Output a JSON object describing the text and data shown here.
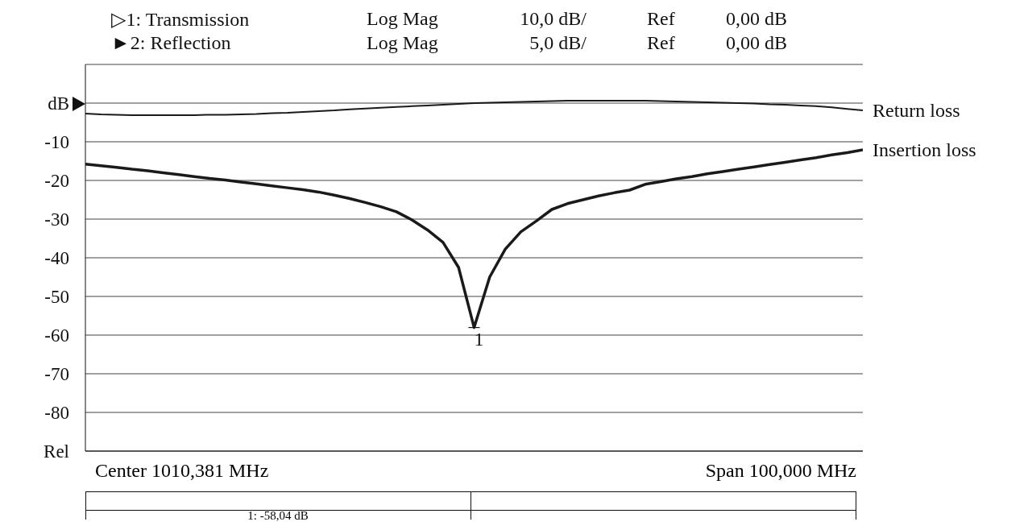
{
  "chart_data": {
    "type": "line",
    "annotations": [
      "▷1: Transmission",
      "Log Mag",
      "10,0 dB/",
      "Ref",
      "0,00 dB",
      "►2: Reflection",
      "Log Mag",
      "5,0 dB/",
      "Ref",
      "0,00 dB",
      "Center 1010,381 MHz",
      "Span 100,000 MHz",
      "1: -58,04 dB",
      {
        "text": "1",
        "y": -58.04
      }
    ],
    "categories": [
      null,
      null,
      null,
      null,
      null,
      null,
      null,
      null,
      null,
      null,
      null,
      null,
      null,
      null,
      null,
      null,
      null,
      null,
      null,
      null,
      null,
      null,
      null,
      null,
      null,
      null,
      null,
      null,
      null,
      null,
      null,
      null,
      null,
      null,
      null,
      null,
      null,
      null,
      null,
      null,
      null,
      null,
      null,
      null,
      null,
      null,
      null,
      null,
      null,
      null,
      null
    ],
    "series": [
      {
        "name": "Return loss",
        "color": "#1a1a1a",
        "values": [
          -2.7,
          -2.9,
          -3.0,
          -3.1,
          -3.1,
          -3.1,
          -3.1,
          -3.1,
          -3.0,
          -3.0,
          -2.9,
          -2.8,
          -2.6,
          -2.5,
          -2.3,
          -2.1,
          -1.9,
          -1.6,
          -1.4,
          -1.2,
          -1.0,
          -0.8,
          -0.6,
          -0.4,
          -0.2,
          0,
          0.1,
          0.2,
          0.3,
          0.4,
          0.5,
          0.6,
          0.6,
          0.6,
          0.6,
          0.6,
          0.6,
          0.5,
          0.4,
          0.3,
          0.2,
          0.1,
          0,
          -0.1,
          -0.3,
          -0.4,
          -0.6,
          -0.8,
          -1.1,
          -1.5,
          -1.9
        ]
      },
      {
        "name": "Insertion loss",
        "color": "#1a1a1a",
        "values": [
          -15.8,
          -16.2,
          -16.6,
          -17.1,
          -17.5,
          -18.0,
          -18.5,
          -19.0,
          -19.5,
          -19.9,
          -20.4,
          -20.9,
          -21.4,
          -21.9,
          -22.4,
          -23.0,
          -23.8,
          -24.7,
          -25.7,
          -26.8,
          -28.1,
          -30.2,
          -32.8,
          -36.0,
          -42.5,
          -58.04,
          -45.0,
          -37.8,
          -33.3,
          -30.5,
          -27.5,
          -26.0,
          -25.0,
          -24.0,
          -23.2,
          -22.5,
          -21.0,
          -20.3,
          -19.6,
          -19.0,
          -18.3,
          -17.7,
          -17.1,
          -16.5,
          -15.9,
          -15.3,
          -14.7,
          -14.1,
          -13.4,
          -12.8,
          -12.1
        ]
      }
    ],
    "ylim": [
      -90,
      10
    ],
    "yticks": [
      {
        "value": -90,
        "label": "Rel"
      },
      -80,
      -70,
      -60,
      -50,
      -40,
      -30,
      -20,
      -10,
      {
        "value": 0,
        "label": "dB"
      },
      {
        "value": 10,
        "label": null
      }
    ],
    "grid": true,
    "legend": false,
    "marker": "none",
    "line_style": "solid",
    "tick_labels": "y"
  }
}
